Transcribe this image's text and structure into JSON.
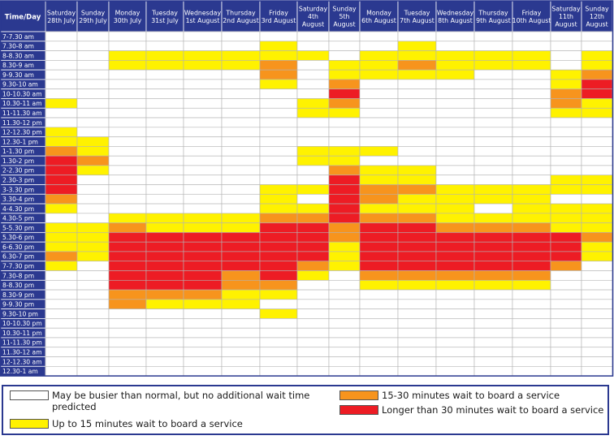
{
  "chart_data": {
    "type": "heatmap",
    "corner_label": "Time/Day",
    "days": [
      [
        "Saturday",
        "28th July"
      ],
      [
        "Sunday",
        "29th July"
      ],
      [
        "Monday",
        "30th July"
      ],
      [
        "Tuesday",
        "31st July"
      ],
      [
        "Wednesday",
        "1st August"
      ],
      [
        "Thursday",
        "2nd August"
      ],
      [
        "Friday",
        "3rd August"
      ],
      [
        "Saturday",
        "4th",
        "August"
      ],
      [
        "Sunday",
        "5th",
        "August"
      ],
      [
        "Monday",
        "6th August"
      ],
      [
        "Tuesday",
        "7th August"
      ],
      [
        "Wednesday",
        "8th August"
      ],
      [
        "Thursday",
        "9th August"
      ],
      [
        "Friday",
        "10th August"
      ],
      [
        "Saturday",
        "11th",
        "August"
      ],
      [
        "Sunday",
        "12th",
        "August"
      ]
    ],
    "times": [
      "7-7.30 am",
      "7.30-8 am",
      "8-8.30 am",
      "8.30-9 am",
      "9-9.30 am",
      "9.30-10 am",
      "10-10.30 am",
      "10.30-11 am",
      "11-11.30 am",
      "11.30-12 pm",
      "12-12.30 pm",
      "12.30-1 pm",
      "1-1.30 pm",
      "1.30-2 pm",
      "2-2.30 pm",
      "2.30-3 pm",
      "3-3.30 pm",
      "3.30-4 pm",
      "4-4.30 pm",
      "4.30-5 pm",
      "5-5.30 pm",
      "5.30-6 pm",
      "6-6.30 pm",
      "6.30-7 pm",
      "7-7.30 pm",
      "7.30-8 pm",
      "8-8.30 pm",
      "8.30-9 pm",
      "9-9.30 pm",
      "9.30-10 pm",
      "10-10.30 pm",
      "10.30-11 pm",
      "11-11.30 pm",
      "11.30-12 am",
      "12-12.30 am",
      "12.30-1 am"
    ],
    "value_scale": {
      "0": "May be busier than normal, but no additional wait time predicted",
      "1": "Up to 15 minutes wait to board a service",
      "2": "15-30 minutes wait to board a service",
      "3": "Longer than 30 minutes wait to board a service"
    },
    "values": [
      [
        0,
        0,
        0,
        0,
        0,
        0,
        0,
        0,
        0,
        0,
        0,
        0,
        0,
        0,
        0,
        0
      ],
      [
        0,
        0,
        0,
        0,
        0,
        0,
        1,
        0,
        0,
        0,
        1,
        0,
        0,
        0,
        0,
        0
      ],
      [
        0,
        0,
        1,
        1,
        1,
        1,
        1,
        1,
        0,
        1,
        1,
        1,
        1,
        1,
        0,
        1
      ],
      [
        0,
        0,
        1,
        1,
        1,
        1,
        2,
        0,
        1,
        1,
        2,
        1,
        1,
        1,
        0,
        1
      ],
      [
        0,
        0,
        0,
        0,
        0,
        0,
        2,
        0,
        1,
        1,
        1,
        1,
        0,
        0,
        1,
        2
      ],
      [
        0,
        0,
        0,
        0,
        0,
        0,
        1,
        0,
        2,
        0,
        0,
        0,
        0,
        0,
        1,
        3
      ],
      [
        0,
        0,
        0,
        0,
        0,
        0,
        0,
        0,
        3,
        0,
        0,
        0,
        0,
        0,
        2,
        3
      ],
      [
        1,
        0,
        0,
        0,
        0,
        0,
        0,
        1,
        2,
        0,
        0,
        0,
        0,
        0,
        2,
        1
      ],
      [
        0,
        0,
        0,
        0,
        0,
        0,
        0,
        1,
        1,
        0,
        0,
        0,
        0,
        0,
        1,
        1
      ],
      [
        0,
        0,
        0,
        0,
        0,
        0,
        0,
        0,
        0,
        0,
        0,
        0,
        0,
        0,
        0,
        0
      ],
      [
        1,
        0,
        0,
        0,
        0,
        0,
        0,
        0,
        0,
        0,
        0,
        0,
        0,
        0,
        0,
        0
      ],
      [
        1,
        1,
        0,
        0,
        0,
        0,
        0,
        0,
        0,
        0,
        0,
        0,
        0,
        0,
        0,
        0
      ],
      [
        2,
        1,
        0,
        0,
        0,
        0,
        0,
        1,
        1,
        1,
        0,
        0,
        0,
        0,
        0,
        0
      ],
      [
        3,
        2,
        0,
        0,
        0,
        0,
        0,
        1,
        1,
        0,
        0,
        0,
        0,
        0,
        0,
        0
      ],
      [
        3,
        1,
        0,
        0,
        0,
        0,
        0,
        0,
        2,
        1,
        1,
        0,
        0,
        0,
        0,
        0
      ],
      [
        3,
        0,
        0,
        0,
        0,
        0,
        0,
        0,
        3,
        1,
        1,
        0,
        0,
        0,
        1,
        1
      ],
      [
        3,
        0,
        0,
        0,
        0,
        0,
        1,
        1,
        3,
        2,
        2,
        1,
        1,
        1,
        1,
        1
      ],
      [
        2,
        0,
        0,
        0,
        0,
        0,
        1,
        0,
        3,
        2,
        1,
        1,
        1,
        1,
        0,
        0
      ],
      [
        1,
        0,
        0,
        0,
        0,
        0,
        1,
        1,
        3,
        1,
        1,
        1,
        0,
        1,
        1,
        1
      ],
      [
        0,
        0,
        1,
        1,
        1,
        1,
        2,
        2,
        3,
        2,
        2,
        1,
        1,
        1,
        1,
        1
      ],
      [
        1,
        1,
        2,
        1,
        1,
        1,
        3,
        3,
        2,
        3,
        3,
        2,
        2,
        2,
        1,
        1
      ],
      [
        1,
        1,
        3,
        3,
        3,
        3,
        3,
        3,
        2,
        3,
        3,
        3,
        3,
        3,
        3,
        2
      ],
      [
        1,
        1,
        3,
        3,
        3,
        3,
        3,
        3,
        1,
        3,
        3,
        3,
        3,
        3,
        3,
        1
      ],
      [
        2,
        1,
        3,
        3,
        3,
        3,
        3,
        3,
        1,
        3,
        3,
        3,
        3,
        3,
        3,
        1
      ],
      [
        1,
        0,
        3,
        3,
        3,
        3,
        3,
        2,
        1,
        3,
        3,
        3,
        3,
        3,
        2,
        0
      ],
      [
        0,
        0,
        3,
        3,
        3,
        2,
        3,
        1,
        0,
        2,
        2,
        2,
        2,
        2,
        0,
        0
      ],
      [
        0,
        0,
        3,
        3,
        3,
        2,
        2,
        0,
        0,
        1,
        1,
        1,
        1,
        1,
        0,
        0
      ],
      [
        0,
        0,
        2,
        2,
        2,
        1,
        1,
        0,
        0,
        0,
        0,
        0,
        0,
        0,
        0,
        0
      ],
      [
        0,
        0,
        2,
        1,
        1,
        1,
        0,
        0,
        0,
        0,
        0,
        0,
        0,
        0,
        0,
        0
      ],
      [
        0,
        0,
        0,
        0,
        0,
        0,
        1,
        0,
        0,
        0,
        0,
        0,
        0,
        0,
        0,
        0
      ],
      [
        0,
        0,
        0,
        0,
        0,
        0,
        0,
        0,
        0,
        0,
        0,
        0,
        0,
        0,
        0,
        0
      ],
      [
        0,
        0,
        0,
        0,
        0,
        0,
        0,
        0,
        0,
        0,
        0,
        0,
        0,
        0,
        0,
        0
      ],
      [
        0,
        0,
        0,
        0,
        0,
        0,
        0,
        0,
        0,
        0,
        0,
        0,
        0,
        0,
        0,
        0
      ],
      [
        0,
        0,
        0,
        0,
        0,
        0,
        0,
        0,
        0,
        0,
        0,
        0,
        0,
        0,
        0,
        0
      ],
      [
        0,
        0,
        0,
        0,
        0,
        0,
        0,
        0,
        0,
        0,
        0,
        0,
        0,
        0,
        0,
        0
      ],
      [
        0,
        0,
        0,
        0,
        0,
        0,
        0,
        0,
        0,
        0,
        0,
        0,
        0,
        0,
        0,
        0
      ]
    ]
  },
  "colors": {
    "header_bg": "#2b3990",
    "header_text": "#ffffff",
    "level_colors": [
      "#ffffff",
      "#fff200",
      "#f7941d",
      "#ed1c24"
    ],
    "grid_line": "#b3b3b3"
  },
  "legend": {
    "items": [
      "May be busier than normal, but no additional wait time predicted",
      "Up to 15 minutes wait to board a service",
      "15-30 minutes wait to board a service",
      "Longer than 30 minutes wait to board a service"
    ]
  }
}
